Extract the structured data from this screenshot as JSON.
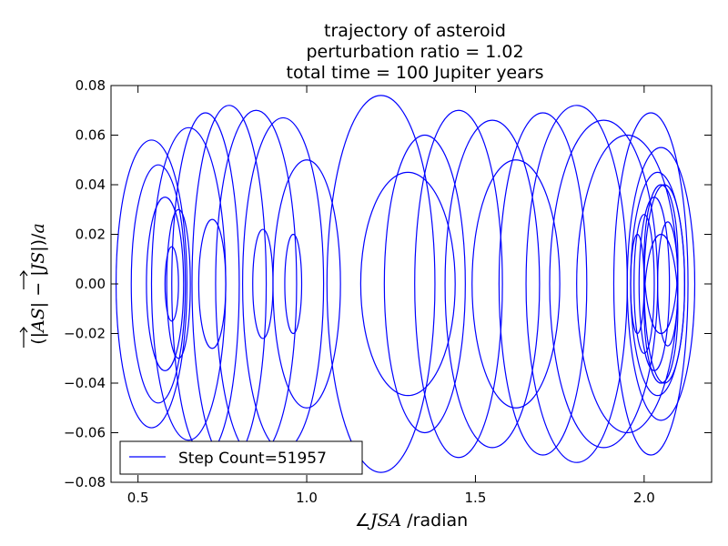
{
  "chart_data": {
    "type": "line",
    "title_lines": [
      "trajectory of asteroid",
      "perturbation ratio = 1.02",
      "total time = 100 Jupiter years"
    ],
    "xlabel": {
      "symbol": "∠",
      "math": "JSA",
      "text": " /radian"
    },
    "ylabel": {
      "open": "(|",
      "vec1": "AS",
      "mid": "| − |",
      "vec2": "JS",
      "close": "|)/",
      "denom": "a"
    },
    "xlim": [
      0.42,
      2.2
    ],
    "ylim": [
      -0.08,
      0.08
    ],
    "x_ticks": [
      0.5,
      1.0,
      1.5,
      2.0
    ],
    "x_tick_labels": [
      "0.5",
      "1.0",
      "1.5",
      "2.0"
    ],
    "y_ticks": [
      -0.08,
      -0.06,
      -0.04,
      -0.02,
      0.0,
      0.02,
      0.04,
      0.06,
      0.08
    ],
    "y_tick_labels": [
      "−0.08",
      "−0.06",
      "−0.04",
      "−0.02",
      "0.00",
      "0.02",
      "0.04",
      "0.06",
      "0.08"
    ],
    "grid": false,
    "legend_position": "lower-left",
    "series": [
      {
        "name": "Step Count=51957",
        "color": "#0000ff"
      }
    ],
    "loops": [
      {
        "cx": 0.54,
        "cy": 0.0,
        "rx": 0.105,
        "ry": 0.058
      },
      {
        "cx": 0.56,
        "cy": 0.0,
        "rx": 0.08,
        "ry": 0.048
      },
      {
        "cx": 0.58,
        "cy": 0.0,
        "rx": 0.055,
        "ry": 0.035
      },
      {
        "cx": 0.6,
        "cy": 0.0,
        "rx": 0.02,
        "ry": 0.015
      },
      {
        "cx": 0.65,
        "cy": 0.0,
        "rx": 0.11,
        "ry": 0.063
      },
      {
        "cx": 0.7,
        "cy": 0.0,
        "rx": 0.1,
        "ry": 0.069
      },
      {
        "cx": 0.77,
        "cy": 0.0,
        "rx": 0.11,
        "ry": 0.072
      },
      {
        "cx": 0.85,
        "cy": 0.0,
        "rx": 0.12,
        "ry": 0.07
      },
      {
        "cx": 0.93,
        "cy": 0.0,
        "rx": 0.12,
        "ry": 0.067
      },
      {
        "cx": 1.0,
        "cy": 0.0,
        "rx": 0.1,
        "ry": 0.05
      },
      {
        "cx": 0.62,
        "cy": 0.0,
        "rx": 0.035,
        "ry": 0.03
      },
      {
        "cx": 0.72,
        "cy": 0.0,
        "rx": 0.04,
        "ry": 0.026
      },
      {
        "cx": 0.87,
        "cy": 0.0,
        "rx": 0.03,
        "ry": 0.022
      },
      {
        "cx": 0.96,
        "cy": 0.0,
        "rx": 0.025,
        "ry": 0.02
      },
      {
        "cx": 1.22,
        "cy": 0.0,
        "rx": 0.16,
        "ry": 0.076
      },
      {
        "cx": 1.3,
        "cy": 0.0,
        "rx": 0.14,
        "ry": 0.045
      },
      {
        "cx": 1.45,
        "cy": 0.0,
        "rx": 0.13,
        "ry": 0.07
      },
      {
        "cx": 1.55,
        "cy": 0.0,
        "rx": 0.14,
        "ry": 0.066
      },
      {
        "cx": 1.62,
        "cy": 0.0,
        "rx": 0.13,
        "ry": 0.05
      },
      {
        "cx": 1.35,
        "cy": 0.0,
        "rx": 0.12,
        "ry": 0.06
      },
      {
        "cx": 1.7,
        "cy": 0.0,
        "rx": 0.13,
        "ry": 0.069
      },
      {
        "cx": 1.8,
        "cy": 0.0,
        "rx": 0.15,
        "ry": 0.072
      },
      {
        "cx": 1.88,
        "cy": 0.0,
        "rx": 0.16,
        "ry": 0.066
      },
      {
        "cx": 1.95,
        "cy": 0.0,
        "rx": 0.15,
        "ry": 0.06
      },
      {
        "cx": 2.02,
        "cy": 0.0,
        "rx": 0.11,
        "ry": 0.069
      },
      {
        "cx": 2.05,
        "cy": 0.0,
        "rx": 0.1,
        "ry": 0.055
      },
      {
        "cx": 2.04,
        "cy": 0.0,
        "rx": 0.08,
        "ry": 0.045
      },
      {
        "cx": 2.06,
        "cy": 0.0,
        "rx": 0.06,
        "ry": 0.04
      },
      {
        "cx": 2.03,
        "cy": 0.0,
        "rx": 0.045,
        "ry": 0.035
      },
      {
        "cx": 2.0,
        "cy": 0.0,
        "rx": 0.03,
        "ry": 0.028
      },
      {
        "cx": 2.07,
        "cy": 0.0,
        "rx": 0.03,
        "ry": 0.025
      },
      {
        "cx": 1.98,
        "cy": 0.0,
        "rx": 0.02,
        "ry": 0.02
      },
      {
        "cx": 2.05,
        "cy": -0.01,
        "rx": 0.05,
        "ry": 0.03
      },
      {
        "cx": 2.05,
        "cy": 0.01,
        "rx": 0.05,
        "ry": 0.03
      }
    ]
  }
}
